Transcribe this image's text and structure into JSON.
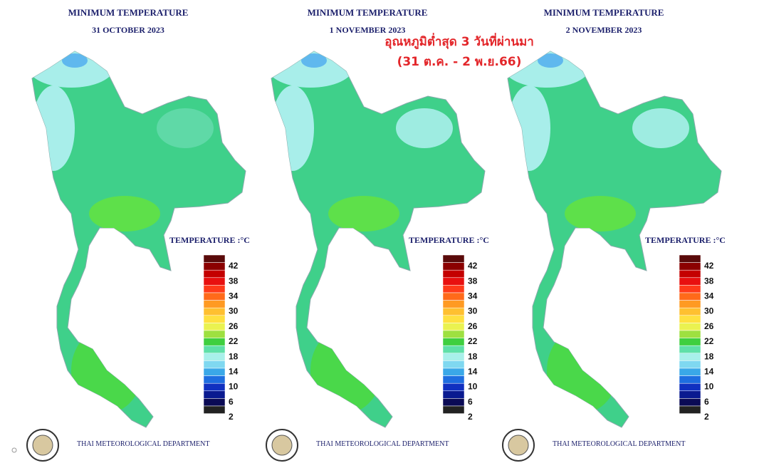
{
  "panels": [
    {
      "title": "MINIMUM TEMPERATURE",
      "date": "31 OCTOBER 2023",
      "legend_title": "TEMPERATURE :°C",
      "legend_labels": [
        42,
        38,
        34,
        30,
        26,
        22,
        18,
        14,
        10,
        6,
        2
      ],
      "footer": "THAI METEOROLOGICAL DEPARTMENT"
    },
    {
      "title": "MINIMUM TEMPERATURE",
      "date": "1 NOVEMBER 2023",
      "legend_title": "TEMPERATURE :°C",
      "legend_labels": [
        42,
        38,
        34,
        30,
        26,
        22,
        18,
        14,
        10,
        6,
        2
      ],
      "footer": "THAI METEOROLOGICAL DEPARTMENT"
    },
    {
      "title": "MINIMUM TEMPERATURE",
      "date": "2 NOVEMBER 2023",
      "legend_title": "TEMPERATURE :°C",
      "legend_labels": [
        42,
        38,
        34,
        30,
        26,
        22,
        18,
        14,
        10,
        6,
        2
      ],
      "footer": "THAI METEOROLOGICAL DEPARTMENT"
    }
  ],
  "overlay": {
    "line1": "อุณหภูมิต่ำสุด 3 วันที่ผ่านมา",
    "line2": "(31 ต.ค. - 2 พ.ย.66)"
  }
}
